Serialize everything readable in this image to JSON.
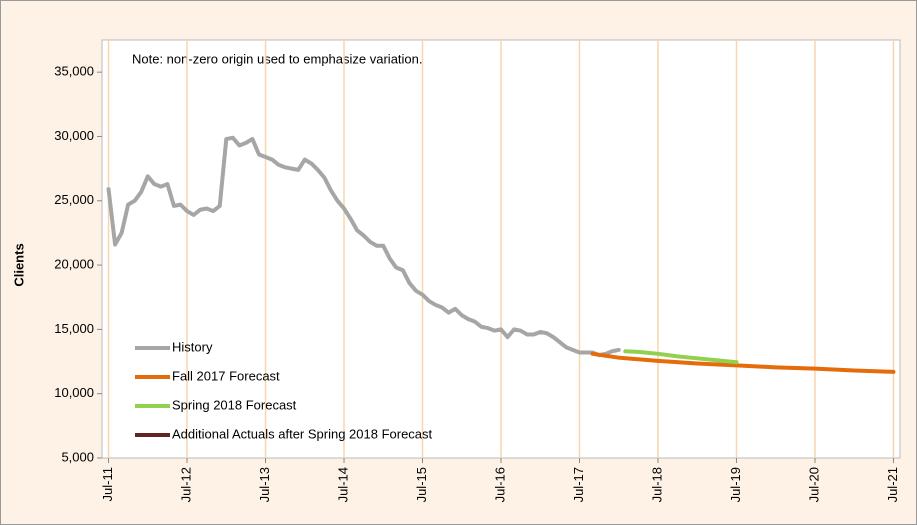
{
  "chart_data": {
    "type": "line",
    "note": "Note: non-zero origin used to emphasize variation.",
    "y_label": "Clients",
    "xlim": [
      "2011-06",
      "2021-08"
    ],
    "xticks": [
      {
        "value": "2011-07",
        "label": "Jul-11"
      },
      {
        "value": "2012-07",
        "label": "Jul-12"
      },
      {
        "value": "2013-07",
        "label": "Jul-13"
      },
      {
        "value": "2014-07",
        "label": "Jul-14"
      },
      {
        "value": "2015-07",
        "label": "Jul-15"
      },
      {
        "value": "2016-07",
        "label": "Jul-16"
      },
      {
        "value": "2017-07",
        "label": "Jul-17"
      },
      {
        "value": "2018-07",
        "label": "Jul-18"
      },
      {
        "value": "2019-07",
        "label": "Jul-19"
      },
      {
        "value": "2020-07",
        "label": "Jul-20"
      },
      {
        "value": "2021-07",
        "label": "Jul-21"
      }
    ],
    "ylim": [
      5000,
      37500
    ],
    "yticks": [
      {
        "value": 5000,
        "label": "5,000"
      },
      {
        "value": 10000,
        "label": "10,000"
      },
      {
        "value": 15000,
        "label": "15,000"
      },
      {
        "value": 20000,
        "label": "20,000"
      },
      {
        "value": 25000,
        "label": "25,000"
      },
      {
        "value": 30000,
        "label": "30,000"
      },
      {
        "value": 35000,
        "label": "35,000"
      }
    ],
    "grid": "x",
    "legend": "lower-left",
    "series": [
      {
        "name": "History",
        "color": "#a6a6a6",
        "x": [
          "2011-07",
          "2011-08",
          "2011-09",
          "2011-10",
          "2011-11",
          "2011-12",
          "2012-01",
          "2012-02",
          "2012-03",
          "2012-04",
          "2012-05",
          "2012-06",
          "2012-07",
          "2012-08",
          "2012-09",
          "2012-10",
          "2012-11",
          "2012-12",
          "2013-01",
          "2013-02",
          "2013-03",
          "2013-04",
          "2013-05",
          "2013-06",
          "2013-07",
          "2013-08",
          "2013-09",
          "2013-10",
          "2013-11",
          "2013-12",
          "2014-01",
          "2014-02",
          "2014-03",
          "2014-04",
          "2014-05",
          "2014-06",
          "2014-07",
          "2014-08",
          "2014-09",
          "2014-10",
          "2014-11",
          "2014-12",
          "2015-01",
          "2015-02",
          "2015-03",
          "2015-04",
          "2015-05",
          "2015-06",
          "2015-07",
          "2015-08",
          "2015-09",
          "2015-10",
          "2015-11",
          "2015-12",
          "2016-01",
          "2016-02",
          "2016-03",
          "2016-04",
          "2016-05",
          "2016-06",
          "2016-07",
          "2016-08",
          "2016-09",
          "2016-10",
          "2016-11",
          "2016-12",
          "2017-01",
          "2017-02",
          "2017-03",
          "2017-04",
          "2017-05",
          "2017-06",
          "2017-07",
          "2017-08",
          "2017-09",
          "2017-10",
          "2017-11",
          "2017-12",
          "2018-01"
        ],
        "values": [
          25900,
          21600,
          22500,
          24700,
          25000,
          25700,
          26900,
          26300,
          26100,
          26300,
          24600,
          24700,
          24200,
          23900,
          24300,
          24400,
          24200,
          24600,
          29800,
          29900,
          29300,
          29500,
          29800,
          28600,
          28400,
          28200,
          27800,
          27600,
          27500,
          27400,
          28200,
          27900,
          27400,
          26800,
          25800,
          25000,
          24400,
          23600,
          22700,
          22300,
          21800,
          21500,
          21500,
          20500,
          19800,
          19600,
          18600,
          18000,
          17700,
          17200,
          16900,
          16700,
          16300,
          16600,
          16100,
          15800,
          15600,
          15200,
          15100,
          14900,
          15000,
          14400,
          15000,
          14900,
          14600,
          14600,
          14800,
          14700,
          14400,
          14000,
          13600,
          13400,
          13200,
          13200,
          13200,
          13000,
          13100,
          13300,
          13400
        ]
      },
      {
        "name": "Fall 2017 Forecast",
        "color": "#e46c0a",
        "x": [
          "2017-09",
          "2018-01",
          "2018-07",
          "2019-01",
          "2019-07",
          "2020-01",
          "2020-07",
          "2021-01",
          "2021-07"
        ],
        "values": [
          13100,
          12800,
          12550,
          12350,
          12200,
          12050,
          11950,
          11800,
          11700
        ]
      },
      {
        "name": "Spring 2018 Forecast",
        "color": "#92d050",
        "x": [
          "2018-02",
          "2018-04",
          "2018-07",
          "2018-10",
          "2019-01",
          "2019-04",
          "2019-07"
        ],
        "values": [
          13300,
          13250,
          13100,
          12900,
          12750,
          12600,
          12450
        ]
      },
      {
        "name": "Additional Actuals after Spring 2018 Forecast",
        "color": "#632523",
        "x": [],
        "values": []
      }
    ]
  }
}
